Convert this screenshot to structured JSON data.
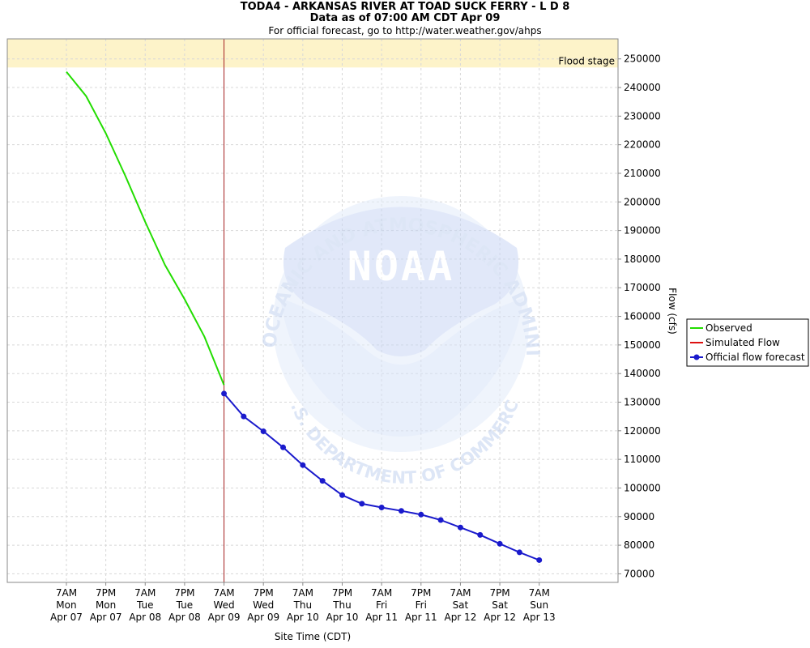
{
  "header": {
    "title": "TODA4 - ARKANSAS RIVER AT TOAD SUCK FERRY - L D 8",
    "subtitle": "Data as of 07:00 AM CDT Apr 09",
    "official_link": "For official forecast, go to http://water.weather.gov/ahps"
  },
  "watermark": {
    "agency": "NOAA",
    "top_arc": "NATIONAL OCEANIC AND ATMOSPHERIC ADMINISTRATION",
    "bottom_arc": "U.S. DEPARTMENT OF COMMERCE"
  },
  "colors": {
    "observed": "#22dd00",
    "simulated": "#dd1111",
    "forecast": "#1a1acc",
    "flood_band": "#fdf3c9",
    "now_line": "#a52020",
    "grid": "#d8d8d8"
  },
  "chart_data": {
    "type": "line",
    "xlabel": "Site Time (CDT)",
    "ylabel": "Flow (cfs)",
    "ylim": [
      67000,
      257000
    ],
    "y_ticks": [
      70000,
      80000,
      90000,
      100000,
      110000,
      120000,
      130000,
      140000,
      150000,
      160000,
      170000,
      180000,
      190000,
      200000,
      210000,
      220000,
      230000,
      240000,
      250000
    ],
    "y_axis_side": "right",
    "xlim": [
      -18,
      168
    ],
    "x_unit": "hours since 7AM Mon Apr 07",
    "x_ticks": [
      {
        "x": 0,
        "time": "7AM",
        "day": "Mon",
        "date": "Apr 07"
      },
      {
        "x": 12,
        "time": "7PM",
        "day": "Mon",
        "date": "Apr 07"
      },
      {
        "x": 24,
        "time": "7AM",
        "day": "Tue",
        "date": "Apr 08"
      },
      {
        "x": 36,
        "time": "7PM",
        "day": "Tue",
        "date": "Apr 08"
      },
      {
        "x": 48,
        "time": "7AM",
        "day": "Wed",
        "date": "Apr 09"
      },
      {
        "x": 60,
        "time": "7PM",
        "day": "Wed",
        "date": "Apr 09"
      },
      {
        "x": 72,
        "time": "7AM",
        "day": "Thu",
        "date": "Apr 10"
      },
      {
        "x": 84,
        "time": "7PM",
        "day": "Thu",
        "date": "Apr 10"
      },
      {
        "x": 96,
        "time": "7AM",
        "day": "Fri",
        "date": "Apr 11"
      },
      {
        "x": 108,
        "time": "7PM",
        "day": "Fri",
        "date": "Apr 11"
      },
      {
        "x": 120,
        "time": "7AM",
        "day": "Sat",
        "date": "Apr 12"
      },
      {
        "x": 132,
        "time": "7PM",
        "day": "Sat",
        "date": "Apr 12"
      },
      {
        "x": 144,
        "time": "7AM",
        "day": "Sun",
        "date": "Apr 13"
      }
    ],
    "flood_stage": {
      "label": "Flood stage",
      "from": 247000,
      "to": 257000
    },
    "now_x": 48,
    "grid": true,
    "legend_position": "right",
    "series": [
      {
        "name": "Observed",
        "style": "line",
        "x": [
          0,
          6,
          12,
          18,
          24,
          30,
          36,
          42,
          48
        ],
        "y": [
          245500,
          237000,
          224000,
          209000,
          193000,
          178000,
          166000,
          153000,
          136000
        ]
      },
      {
        "name": "Simulated Flow",
        "style": "line",
        "x": [],
        "y": []
      },
      {
        "name": "Official flow forecast",
        "style": "line-markers",
        "x": [
          48,
          54,
          60,
          66,
          72,
          78,
          84,
          90,
          96,
          102,
          108,
          114,
          120,
          126,
          132,
          138,
          144
        ],
        "y": [
          133000,
          125000,
          119800,
          114200,
          108000,
          102500,
          97500,
          94500,
          93200,
          92000,
          90700,
          88800,
          86200,
          83600,
          80500,
          77500,
          74800
        ]
      }
    ]
  }
}
